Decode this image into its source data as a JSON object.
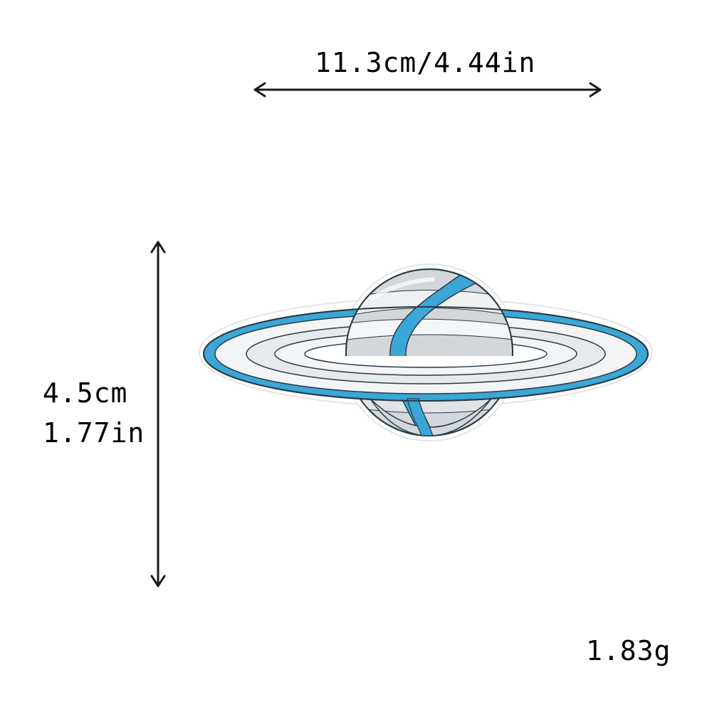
{
  "dimensions": {
    "width_label": "11.3cm/4.44in",
    "height_label_cm": "4.5cm",
    "height_label_in": "1.77in"
  },
  "weight_label": "1.83g",
  "product": {
    "icon": "planet-with-rings-icon"
  },
  "colors": {
    "ring_blue": "#3aa7d6",
    "stitch_white": "#f2f4f6",
    "stitch_grey": "#c9ced3",
    "outline": "#2a3a44",
    "arrow": "#1a1a1a"
  }
}
